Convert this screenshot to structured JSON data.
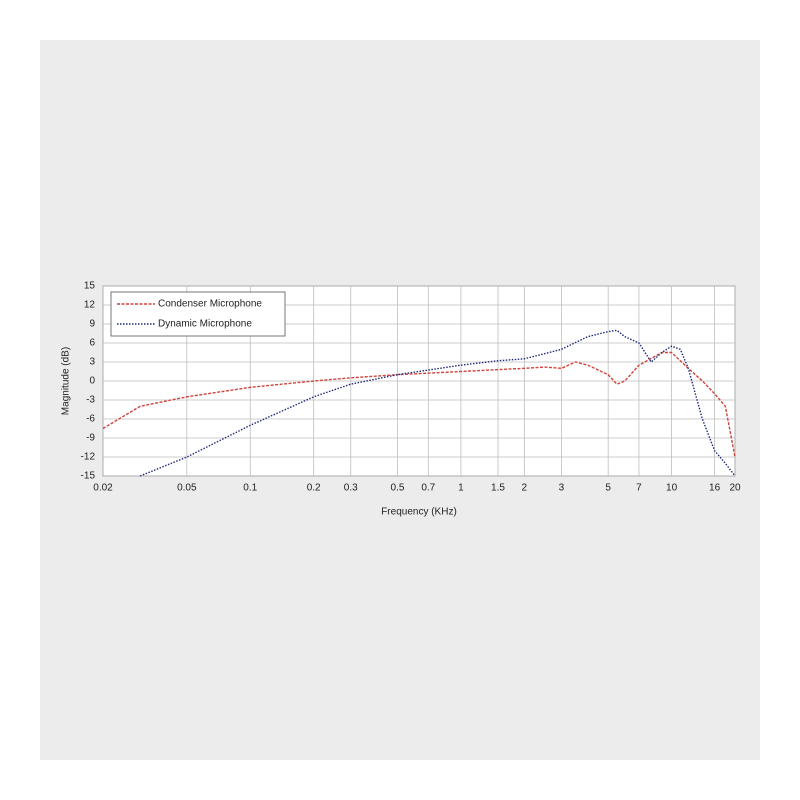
{
  "chart_data": {
    "type": "line",
    "x_label": "Frequency (KHz)",
    "y_label": "Magnitude (dB)",
    "xlim": [
      0.02,
      20
    ],
    "ylim": [
      -15,
      15
    ],
    "log_x": true,
    "grid": true,
    "legend": "upper left",
    "xticks": [
      0.02,
      0.05,
      0.1,
      0.2,
      0.3,
      0.5,
      0.7,
      1,
      1.5,
      2,
      3,
      5,
      7,
      10,
      16,
      20
    ],
    "yticks": [
      15,
      12,
      9,
      6,
      3,
      0,
      -3,
      -6,
      -9,
      -12,
      -15
    ],
    "series": [
      {
        "name": "Condenser Microphone",
        "color": "#d0433c",
        "x": [
          0.02,
          0.03,
          0.05,
          0.1,
          0.2,
          0.3,
          0.5,
          1,
          1.5,
          2,
          2.5,
          3,
          3.5,
          4,
          5,
          5.5,
          6,
          7,
          9,
          10,
          12,
          14,
          16,
          18,
          20
        ],
        "values": [
          -7.5,
          -4,
          -2.5,
          -1,
          0,
          0.5,
          1,
          1.5,
          1.8,
          2,
          2.2,
          2,
          3,
          2.5,
          1,
          -0.5,
          0,
          2.5,
          4.5,
          4.5,
          2,
          0,
          -2,
          -4,
          -12
        ]
      },
      {
        "name": "Dynamic Microphone",
        "color": "#1f2a7a",
        "x": [
          0.03,
          0.05,
          0.1,
          0.2,
          0.3,
          0.5,
          1,
          1.5,
          2,
          3,
          4,
          5,
          5.5,
          6,
          7,
          8,
          9,
          10,
          11,
          12,
          14,
          16,
          18,
          20
        ],
        "values": [
          -15,
          -12,
          -7,
          -2.5,
          -0.5,
          1,
          2.5,
          3.2,
          3.5,
          5,
          7,
          7.8,
          8,
          7,
          6,
          3,
          4.5,
          5.5,
          5,
          2,
          -6,
          -11,
          -13,
          -15
        ]
      }
    ]
  }
}
